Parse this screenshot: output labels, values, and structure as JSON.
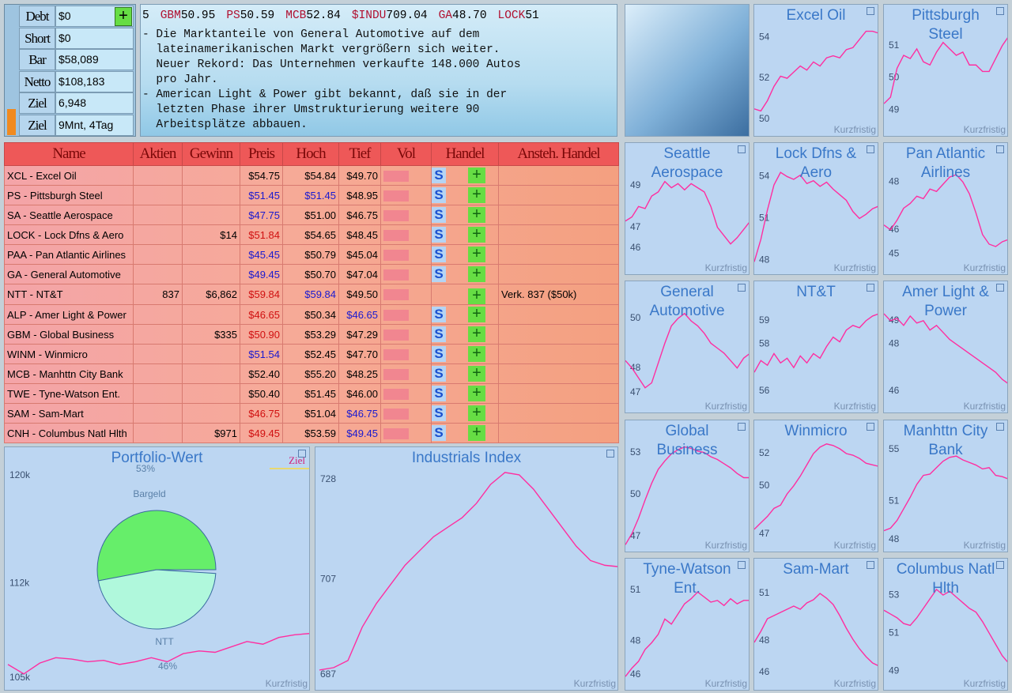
{
  "account": {
    "rows": [
      {
        "label": "Debt",
        "value": "$0",
        "button": "+"
      },
      {
        "label": "Short",
        "value": "$0"
      },
      {
        "label": "Bar",
        "value": "$58,089"
      },
      {
        "label": "Netto",
        "value": "$108,183"
      },
      {
        "label": "Ziel",
        "value": "6,948"
      },
      {
        "label": "Ziel",
        "value": "9Mnt, 4Tag"
      }
    ]
  },
  "ticker": [
    {
      "price": "5"
    },
    {
      "symbol": "GBM",
      "price": "50.95"
    },
    {
      "symbol": "PS",
      "price": "50.59"
    },
    {
      "symbol": "MCB",
      "price": "52.84"
    },
    {
      "symbol": "$INDU",
      "price": "709.04"
    },
    {
      "symbol": "GA",
      "price": "48.70"
    },
    {
      "symbol": "LOCK",
      "price": "51"
    }
  ],
  "news": [
    "- Die Marktanteile von General Automotive auf dem",
    "  lateinamerikanischen Markt vergrößern sich weiter.",
    "  Neuer Rekord: Das Unternehmen verkaufte 148.000 Autos",
    "  pro Jahr.",
    "- American Light & Power gibt bekannt, daß sie in der",
    "  letzten Phase ihrer Umstrukturierung weitere 90",
    "  Arbeitsplätze abbauen."
  ],
  "table": {
    "header": [
      "Name",
      "Aktien",
      "Gewinn",
      "Preis",
      "Hoch",
      "Tief",
      "Vol",
      "Handel",
      "Ansteh. Handel"
    ],
    "sell_label": "S",
    "buy_label": "+",
    "rows": [
      {
        "cells": [
          "XCL - Excel Oil",
          null,
          null,
          "$54.75",
          "$54.84",
          "$49.70"
        ],
        "colors": [
          "#000000",
          "#000000",
          "#000000"
        ],
        "sell": true,
        "order": null
      },
      {
        "cells": [
          "PS - Pittsburgh Steel",
          null,
          null,
          "$51.45",
          "$51.45",
          "$48.95"
        ],
        "colors": [
          "#1a1ad0",
          "#1a1ad0",
          "#000000"
        ],
        "sell": true,
        "order": null
      },
      {
        "cells": [
          "SA - Seattle Aerospace",
          null,
          null,
          "$47.75",
          "$51.00",
          "$46.75"
        ],
        "colors": [
          "#1a1ad0",
          "#000000",
          "#000000"
        ],
        "sell": true,
        "order": null
      },
      {
        "cells": [
          "LOCK - Lock Dfns & Aero",
          null,
          "$14",
          "$51.84",
          "$54.65",
          "$48.45"
        ],
        "colors": [
          "#d01010",
          "#000000",
          "#000000"
        ],
        "sell": true,
        "order": null
      },
      {
        "cells": [
          "PAA - Pan Atlantic Airlines",
          null,
          null,
          "$45.45",
          "$50.79",
          "$45.04"
        ],
        "colors": [
          "#1a1ad0",
          "#000000",
          "#000000"
        ],
        "sell": true,
        "order": null
      },
      {
        "cells": [
          "GA - General Automotive",
          null,
          null,
          "$49.45",
          "$50.70",
          "$47.04"
        ],
        "colors": [
          "#1a1ad0",
          "#000000",
          "#000000"
        ],
        "sell": true,
        "order": null
      },
      {
        "cells": [
          "NTT - NT&T",
          "837",
          "$6,862",
          "$59.84",
          "$59.84",
          "$49.50"
        ],
        "colors": [
          "#d01010",
          "#1a1ad0",
          "#000000"
        ],
        "sell": false,
        "order": "Verk. 837 ($50k)"
      },
      {
        "cells": [
          "ALP - Amer Light & Power",
          null,
          null,
          "$46.65",
          "$50.34",
          "$46.65"
        ],
        "colors": [
          "#d01010",
          "#000000",
          "#1a1ad0"
        ],
        "sell": true,
        "order": null
      },
      {
        "cells": [
          "GBM - Global Business",
          null,
          "$335",
          "$50.90",
          "$53.29",
          "$47.29"
        ],
        "colors": [
          "#d01010",
          "#000000",
          "#000000"
        ],
        "sell": true,
        "order": null
      },
      {
        "cells": [
          "WINM - Winmicro",
          null,
          null,
          "$51.54",
          "$52.45",
          "$47.70"
        ],
        "colors": [
          "#1a1ad0",
          "#000000",
          "#000000"
        ],
        "sell": true,
        "order": null
      },
      {
        "cells": [
          "MCB - Manhttn City Bank",
          null,
          null,
          "$52.40",
          "$55.20",
          "$48.25"
        ],
        "colors": [
          "#000000",
          "#000000",
          "#000000"
        ],
        "sell": true,
        "order": null
      },
      {
        "cells": [
          "TWE - Tyne-Watson Ent.",
          null,
          null,
          "$50.40",
          "$51.45",
          "$46.00"
        ],
        "colors": [
          "#000000",
          "#000000",
          "#000000"
        ],
        "sell": true,
        "order": null
      },
      {
        "cells": [
          "SAM - Sam-Mart",
          null,
          null,
          "$46.75",
          "$51.04",
          "$46.75"
        ],
        "colors": [
          "#d01010",
          "#000000",
          "#1a1ad0"
        ],
        "sell": true,
        "order": null
      },
      {
        "cells": [
          "CNH - Columbus Natl Hlth",
          null,
          "$971",
          "$49.45",
          "$53.59",
          "$49.45"
        ],
        "colors": [
          "#d01010",
          "#000000",
          "#1a1ad0"
        ],
        "sell": true,
        "order": null
      }
    ]
  },
  "footer_label": "Kurzfristig",
  "line_color": "#ff2ea0",
  "stock_charts": [
    {
      "title": "Excel Oil",
      "ylim": [
        49.1,
        55.6
      ],
      "yticks": [
        54,
        52,
        50
      ],
      "values": [
        50.5,
        50.4,
        50.9,
        51.6,
        52.1,
        52.0,
        52.3,
        52.6,
        52.4,
        52.8,
        52.6,
        53.0,
        53.1,
        53.0,
        53.4,
        53.5,
        53.9,
        54.3,
        54.3,
        54.2
      ]
    },
    {
      "title": "Pittsburgh Steel",
      "ylim": [
        48.15,
        52.27
      ],
      "yticks": [
        51,
        50,
        49
      ],
      "values": [
        49.2,
        49.4,
        50.3,
        50.7,
        50.6,
        50.9,
        50.5,
        50.4,
        50.8,
        51.1,
        50.9,
        50.7,
        50.8,
        50.4,
        50.4,
        50.2,
        50.2,
        50.6,
        51.0,
        51.3
      ]
    },
    {
      "title": "Seattle Aerospace",
      "ylim": [
        44.67,
        51.05
      ],
      "yticks": [
        49,
        47,
        46
      ],
      "values": [
        47.3,
        47.5,
        48.0,
        47.9,
        48.5,
        48.7,
        49.2,
        48.9,
        49.1,
        48.8,
        49.1,
        48.9,
        48.7,
        48.0,
        47.0,
        46.6,
        46.2,
        46.5,
        46.9,
        47.3
      ]
    },
    {
      "title": "Lock Dfns & Aero",
      "ylim": [
        46.9,
        56.4
      ],
      "yticks": [
        54,
        51,
        48
      ],
      "values": [
        47.9,
        49.5,
        51.6,
        53.4,
        54.3,
        54.0,
        53.8,
        54.1,
        53.5,
        53.7,
        53.3,
        53.6,
        53.1,
        52.7,
        52.3,
        51.5,
        51.0,
        51.3,
        51.7,
        51.9
      ]
    },
    {
      "title": "Pan Atlantic Airlines",
      "ylim": [
        44.08,
        49.62
      ],
      "yticks": [
        48,
        46,
        45
      ],
      "values": [
        46.2,
        46.0,
        46.4,
        46.9,
        47.1,
        47.4,
        47.3,
        47.7,
        47.6,
        47.9,
        48.2,
        48.3,
        48.0,
        47.5,
        46.7,
        45.8,
        45.4,
        45.3,
        45.5,
        45.6
      ]
    },
    {
      "title": "General Automotive",
      "ylim": [
        46.14,
        51.5
      ],
      "yticks": [
        50,
        48,
        47
      ],
      "values": [
        48.3,
        48.0,
        47.6,
        47.2,
        47.4,
        48.2,
        49.0,
        49.7,
        50.0,
        50.2,
        49.9,
        49.7,
        49.4,
        49.0,
        48.8,
        48.6,
        48.3,
        48.0,
        48.4,
        48.6
      ]
    },
    {
      "title": "NT&T",
      "ylim": [
        55.02,
        60.68
      ],
      "yticks": [
        59,
        58,
        56
      ],
      "values": [
        56.8,
        57.3,
        57.1,
        57.6,
        57.2,
        57.4,
        57.0,
        57.5,
        57.2,
        57.6,
        57.4,
        57.9,
        58.3,
        58.1,
        58.6,
        58.8,
        58.7,
        59.0,
        59.2,
        59.3
      ]
    },
    {
      "title": "Amer Light & Power",
      "ylim": [
        45.02,
        50.68
      ],
      "yticks": [
        49,
        48,
        46
      ],
      "values": [
        49.3,
        49.0,
        49.1,
        48.8,
        49.2,
        48.9,
        49.0,
        48.6,
        48.8,
        48.5,
        48.2,
        48.0,
        47.8,
        47.6,
        47.4,
        47.2,
        47.0,
        46.8,
        46.5,
        46.3
      ]
    },
    {
      "title": "Global Business",
      "ylim": [
        45.8,
        55.3
      ],
      "yticks": [
        53,
        50,
        47
      ],
      "values": [
        46.4,
        47.2,
        48.3,
        49.6,
        50.8,
        51.8,
        52.4,
        52.9,
        53.2,
        53.4,
        53.3,
        53.1,
        53.0,
        52.7,
        52.5,
        52.2,
        51.9,
        51.5,
        51.2,
        51.2
      ]
    },
    {
      "title": "Winmicro",
      "ylim": [
        45.82,
        54.06
      ],
      "yticks": [
        52,
        50,
        47
      ],
      "values": [
        47.3,
        47.7,
        48.1,
        48.6,
        48.8,
        49.5,
        50.0,
        50.6,
        51.3,
        52.0,
        52.4,
        52.6,
        52.5,
        52.3,
        52.0,
        51.9,
        51.7,
        51.4,
        51.3,
        51.2
      ]
    },
    {
      "title": "Manhttn City Bank",
      "ylim": [
        46.96,
        57.27
      ],
      "yticks": [
        55,
        51,
        48
      ],
      "values": [
        48.7,
        48.9,
        49.5,
        50.4,
        51.3,
        52.3,
        53.0,
        53.1,
        53.6,
        54.1,
        54.4,
        54.5,
        54.2,
        54.0,
        53.8,
        53.5,
        53.6,
        53.0,
        52.9,
        52.7
      ]
    },
    {
      "title": "Tyne-Watson Ent.",
      "ylim": [
        45.02,
        52.87
      ],
      "yticks": [
        51,
        48,
        46
      ],
      "values": [
        45.9,
        46.4,
        46.8,
        47.5,
        47.9,
        48.4,
        49.3,
        49.0,
        49.6,
        50.2,
        50.5,
        50.9,
        50.6,
        50.3,
        50.4,
        50.1,
        50.5,
        50.2,
        50.4,
        50.4
      ]
    },
    {
      "title": "Sam-Mart",
      "ylim": [
        44.8,
        53.2
      ],
      "yticks": [
        51,
        48,
        46
      ],
      "values": [
        47.9,
        48.6,
        49.4,
        49.6,
        49.8,
        50.0,
        50.2,
        50.0,
        50.4,
        50.6,
        51.0,
        50.7,
        50.3,
        49.6,
        48.8,
        48.1,
        47.5,
        47.0,
        46.6,
        46.4
      ]
    },
    {
      "title": "Columbus Natl Hlth",
      "ylim": [
        47.92,
        54.92
      ],
      "yticks": [
        53,
        51,
        49
      ],
      "values": [
        52.2,
        52.0,
        51.8,
        51.5,
        51.4,
        51.8,
        52.3,
        52.8,
        53.3,
        53.0,
        53.2,
        52.9,
        52.6,
        52.3,
        52.1,
        51.6,
        51.0,
        50.4,
        49.8,
        49.4
      ]
    }
  ],
  "portfolio": {
    "title": "Portfolio-Wert",
    "ylim": [
      104000,
      122100
    ],
    "yticks": [
      {
        "value": 120000,
        "label": "120k"
      },
      {
        "value": 112000,
        "label": "112k"
      },
      {
        "value": 105000,
        "label": "105k"
      }
    ],
    "values": [
      106000,
      105300,
      106100,
      106500,
      106400,
      106200,
      106300,
      106000,
      106200,
      106500,
      106200,
      106800,
      107000,
      106900,
      107300,
      107700,
      107500,
      108000,
      108200,
      108300
    ],
    "legend": "Ziel",
    "pie": {
      "slices": [
        {
          "name": "Bargeld",
          "value": 53,
          "color": "#66ee6a"
        },
        {
          "name": "NTT",
          "value": 46,
          "color": "#b0f8dc"
        }
      ],
      "value_labels": [
        "53%",
        "46%"
      ]
    }
  },
  "industrials": {
    "title": "Industrials Index",
    "ylim": [
      683.5,
      734.8
    ],
    "yticks": [
      728,
      707,
      687
    ],
    "values": [
      688,
      688.5,
      690,
      697,
      702,
      706,
      710,
      713,
      716,
      718,
      720,
      723,
      727,
      729.5,
      729,
      726,
      722,
      718,
      714,
      711,
      710,
      709.7
    ]
  }
}
